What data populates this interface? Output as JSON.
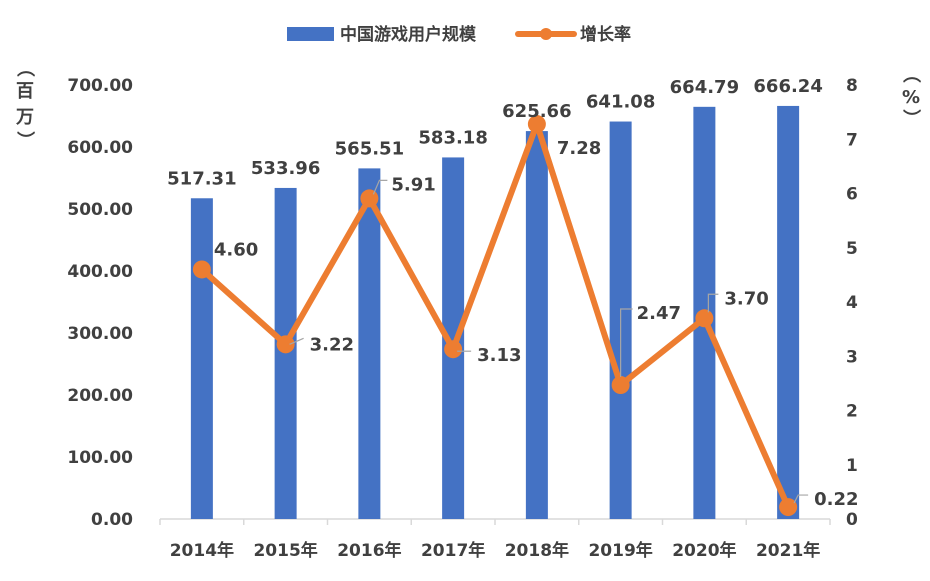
{
  "chart_data": {
    "type": "bar",
    "categories": [
      "2014年",
      "2015年",
      "2016年",
      "2017年",
      "2018年",
      "2019年",
      "2020年",
      "2021年"
    ],
    "series": [
      {
        "name": "中国游戏用户规模",
        "type": "bar",
        "axis": "left",
        "color": "#4472C4",
        "values": [
          517.31,
          533.96,
          565.51,
          583.18,
          625.66,
          641.08,
          664.79,
          666.24
        ],
        "labels": [
          "517.31",
          "533.96",
          "565.51",
          "583.18",
          "625.66",
          "641.08",
          "664.79",
          "666.24"
        ]
      },
      {
        "name": "增长率",
        "type": "line",
        "axis": "right",
        "color": "#ED7D31",
        "values": [
          4.6,
          3.22,
          5.91,
          3.13,
          7.28,
          2.47,
          3.7,
          0.22
        ],
        "labels": [
          "4.60",
          "3.22",
          "5.91",
          "3.13",
          "7.28",
          "2.47",
          "3.70",
          "0.22"
        ]
      }
    ],
    "y_left": {
      "ylim": [
        0,
        700
      ],
      "ticks": [
        "0.00",
        "100.00",
        "200.00",
        "300.00",
        "400.00",
        "500.00",
        "600.00",
        "700.00"
      ],
      "unit_chars": [
        "（",
        "百",
        "万",
        "）"
      ]
    },
    "y_right": {
      "ylim": [
        0,
        8
      ],
      "ticks": [
        "0",
        "1",
        "2",
        "3",
        "4",
        "5",
        "6",
        "7",
        "8"
      ],
      "unit_chars": [
        "（",
        "%",
        "）"
      ]
    },
    "legend_position": "top",
    "grid": false
  }
}
